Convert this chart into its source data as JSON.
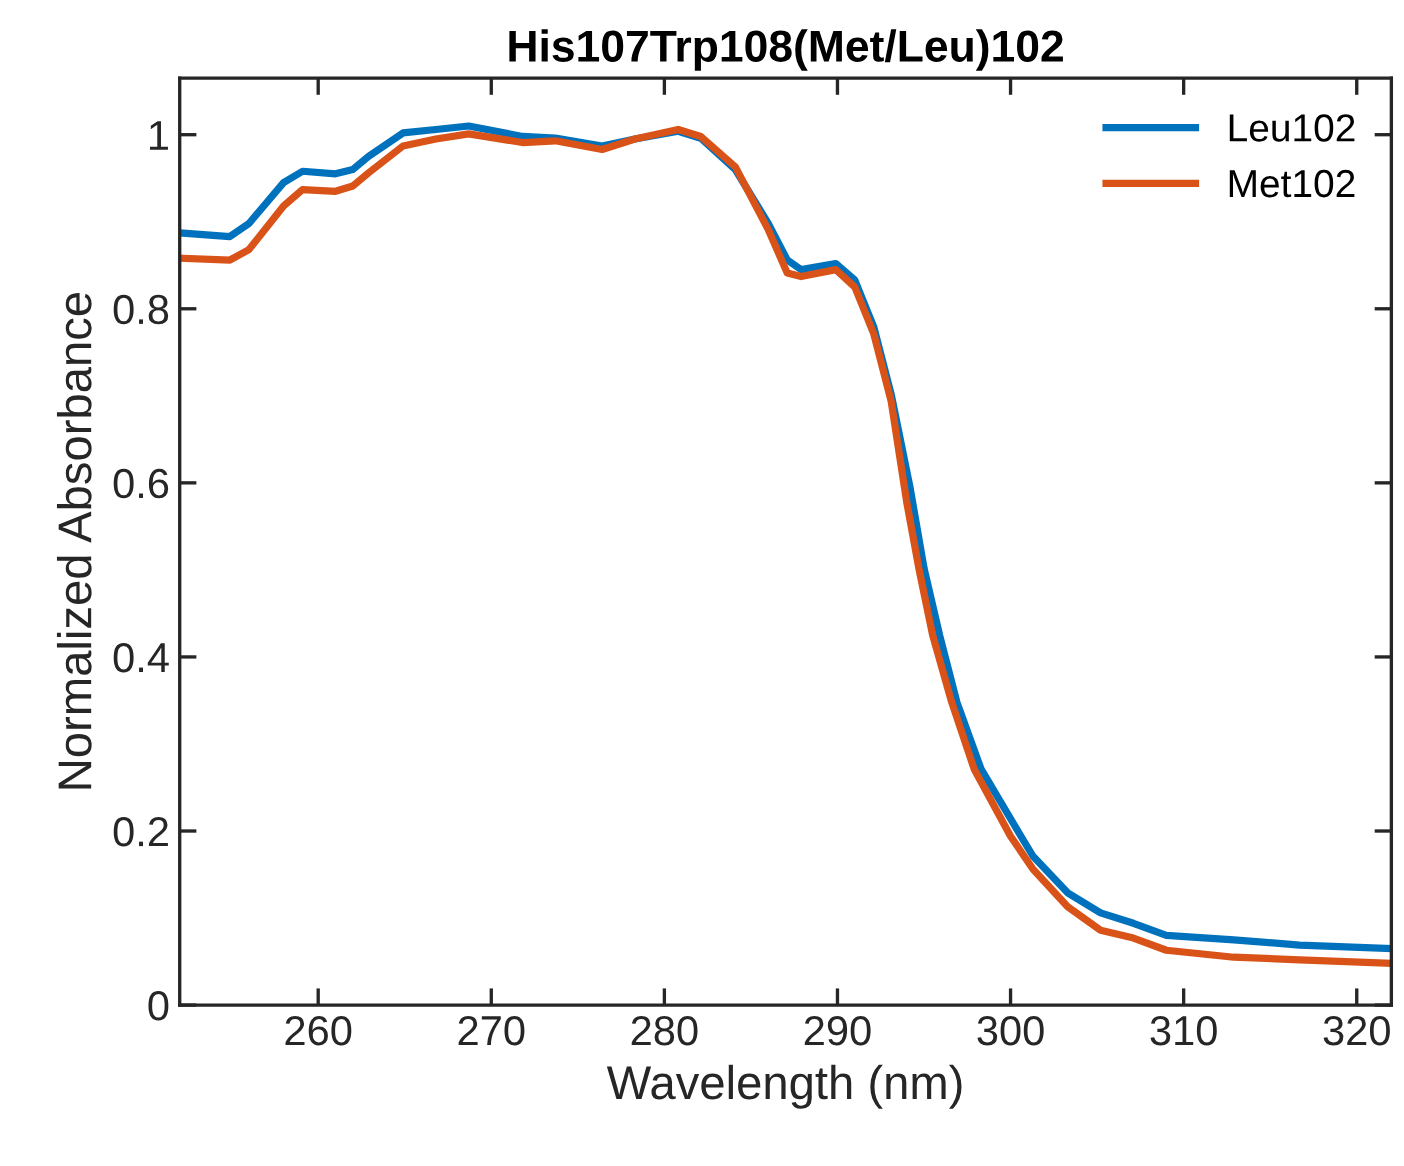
{
  "chart_data": {
    "type": "line",
    "title": "His107Trp108(Met/Leu)102",
    "xlabel": "Wavelength (nm)",
    "ylabel": "Normalized Absorbance",
    "xlim": [
      252,
      322
    ],
    "xticks": [
      260,
      270,
      280,
      290,
      300,
      310,
      320
    ],
    "ylim": [
      0,
      1.065
    ],
    "yticks": [
      0,
      0.2,
      0.4,
      0.6,
      0.8,
      1
    ],
    "grid": false,
    "legend": "top right",
    "marker": "none",
    "line_style": "solid",
    "series": [
      {
        "name": "Leu102",
        "color": "#0072bd",
        "x": [
          252.2,
          254.9,
          256.0,
          258.0,
          259.1,
          261.0,
          262.0,
          262.9,
          264.9,
          266.8,
          268.7,
          271.8,
          273.7,
          276.4,
          278.3,
          280.8,
          282.1,
          284.1,
          286.0,
          287.1,
          287.9,
          289.9,
          291.0,
          292.1,
          293.1,
          294.2,
          295.0,
          295.9,
          296.9,
          298.3,
          300.6,
          301.3,
          303.3,
          305.2,
          307.1,
          309.0,
          312.9,
          316.7,
          321.9
        ],
        "values": [
          0.887,
          0.883,
          0.898,
          0.945,
          0.958,
          0.955,
          0.96,
          0.975,
          1.002,
          1.006,
          1.01,
          0.998,
          0.996,
          0.987,
          0.995,
          1.004,
          0.996,
          0.96,
          0.898,
          0.856,
          0.845,
          0.852,
          0.833,
          0.779,
          0.702,
          0.594,
          0.502,
          0.425,
          0.348,
          0.271,
          0.194,
          0.171,
          0.129,
          0.106,
          0.094,
          0.08,
          0.075,
          0.069,
          0.065
        ]
      },
      {
        "name": "Met102",
        "color": "#d95319",
        "x": [
          252.2,
          254.9,
          256.0,
          258.0,
          259.1,
          261.0,
          262.0,
          262.9,
          264.9,
          266.8,
          268.7,
          271.8,
          273.7,
          276.4,
          278.3,
          280.8,
          282.1,
          284.1,
          286.0,
          287.1,
          287.9,
          289.9,
          291.0,
          292.1,
          293.1,
          294.0,
          294.7,
          295.5,
          296.6,
          297.9,
          300.0,
          301.3,
          303.3,
          305.2,
          307.1,
          309.0,
          312.9,
          316.7,
          321.9
        ],
        "values": [
          0.858,
          0.856,
          0.868,
          0.918,
          0.937,
          0.935,
          0.941,
          0.956,
          0.987,
          0.995,
          1.001,
          0.991,
          0.993,
          0.983,
          0.995,
          1.006,
          0.998,
          0.963,
          0.891,
          0.841,
          0.837,
          0.845,
          0.825,
          0.771,
          0.694,
          0.578,
          0.502,
          0.425,
          0.348,
          0.271,
          0.194,
          0.156,
          0.113,
          0.086,
          0.077,
          0.063,
          0.055,
          0.052,
          0.048
        ]
      }
    ]
  }
}
